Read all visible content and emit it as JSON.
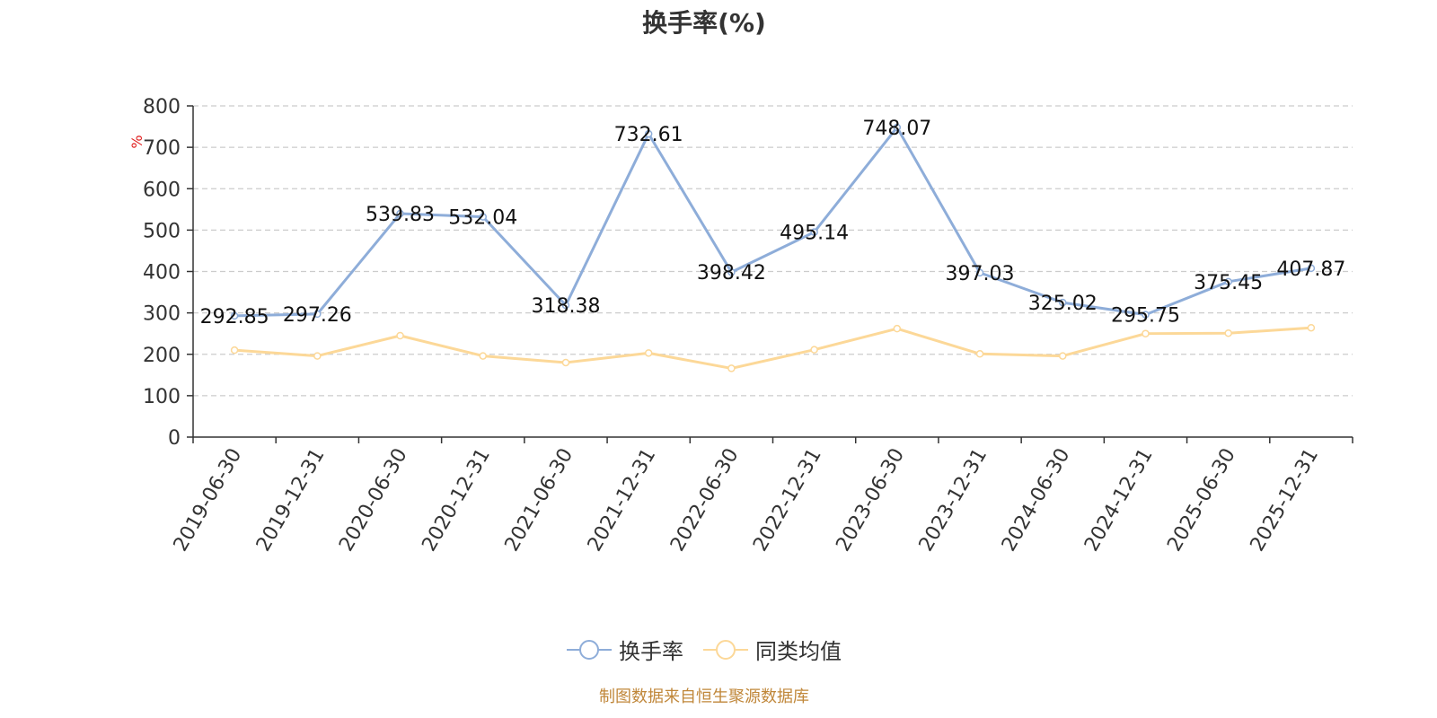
{
  "chart_data": {
    "type": "line",
    "title": "换手率(%)",
    "ylabel": "%",
    "ylim": [
      0,
      800
    ],
    "yticks": [
      0,
      100,
      200,
      300,
      400,
      500,
      600,
      700,
      800
    ],
    "categories": [
      "2019-06-30",
      "2019-12-31",
      "2020-06-30",
      "2020-12-31",
      "2021-06-30",
      "2021-12-31",
      "2022-06-30",
      "2022-12-31",
      "2023-06-30",
      "2023-12-31",
      "2024-06-30",
      "2024-12-31",
      "2025-06-30",
      "2025-12-31"
    ],
    "series": [
      {
        "name": "换手率",
        "color": "#8eadd9",
        "values": [
          292.85,
          297.26,
          539.83,
          532.04,
          318.38,
          732.61,
          398.42,
          495.14,
          748.07,
          397.03,
          325.02,
          295.75,
          375.45,
          407.87
        ],
        "labels": [
          "292.85",
          "297.26",
          "539.83",
          "532.04",
          "318.38",
          "732.61",
          "398.42",
          "495.14",
          "748.07",
          "397.03",
          "325.02",
          "295.75",
          "375.45",
          "407.87"
        ]
      },
      {
        "name": "同类均值",
        "color": "#fcd898",
        "values": [
          210,
          196,
          245,
          196,
          180,
          203,
          166,
          211,
          262,
          201,
          196,
          250,
          251,
          264
        ]
      }
    ],
    "grid": true,
    "legend_position": "bottom"
  },
  "footer": {
    "source": "制图数据来自恒生聚源数据库"
  }
}
